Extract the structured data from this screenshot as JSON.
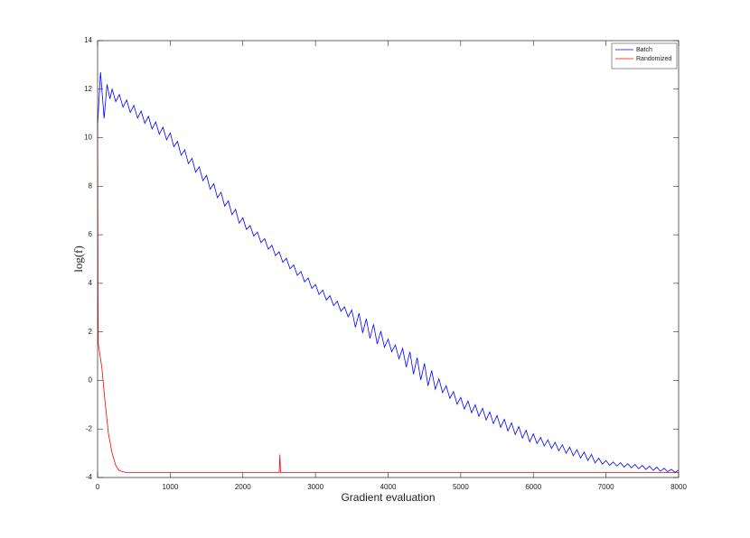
{
  "chart_data": {
    "type": "line",
    "xlabel": "Gradient evaluation",
    "ylabel": "log(f)",
    "xlim": [
      0,
      8000
    ],
    "ylim": [
      -4,
      14
    ],
    "xticks": [
      0,
      1000,
      2000,
      3000,
      4000,
      5000,
      6000,
      7000,
      8000
    ],
    "yticks": [
      -4,
      -2,
      0,
      2,
      4,
      6,
      8,
      10,
      12,
      14
    ],
    "legend": "upper right",
    "series": [
      {
        "name": "Batch",
        "color": "#0000ff",
        "x": [
          0,
          40,
          90,
          130,
          170,
          200,
          250,
          300,
          350,
          400,
          450,
          500,
          550,
          600,
          650,
          700,
          750,
          800,
          850,
          900,
          950,
          1000,
          1050,
          1100,
          1150,
          1200,
          1250,
          1300,
          1350,
          1400,
          1450,
          1500,
          1550,
          1600,
          1650,
          1700,
          1750,
          1800,
          1850,
          1900,
          1950,
          2000,
          2050,
          2100,
          2150,
          2200,
          2250,
          2300,
          2350,
          2400,
          2450,
          2500,
          2550,
          2600,
          2650,
          2700,
          2750,
          2800,
          2850,
          2900,
          2950,
          3000,
          3050,
          3100,
          3150,
          3200,
          3250,
          3300,
          3350,
          3400,
          3450,
          3500,
          3550,
          3600,
          3650,
          3700,
          3750,
          3800,
          3850,
          3900,
          3950,
          4000,
          4050,
          4100,
          4150,
          4200,
          4250,
          4300,
          4350,
          4400,
          4450,
          4500,
          4550,
          4600,
          4650,
          4700,
          4750,
          4800,
          4850,
          4900,
          4950,
          5000,
          5050,
          5100,
          5150,
          5200,
          5250,
          5300,
          5350,
          5400,
          5450,
          5500,
          5550,
          5600,
          5650,
          5700,
          5750,
          5800,
          5850,
          5900,
          5950,
          6000,
          6050,
          6100,
          6150,
          6200,
          6250,
          6300,
          6350,
          6400,
          6450,
          6500,
          6550,
          6600,
          6650,
          6700,
          6750,
          6800,
          6850,
          6900,
          6950,
          7000,
          7050,
          7100,
          7150,
          7200,
          7250,
          7300,
          7350,
          7400,
          7450,
          7500,
          7550,
          7600,
          7650,
          7700,
          7750,
          7800,
          7850,
          7900,
          7950,
          8000
        ],
        "values": [
          10.5,
          12.7,
          10.8,
          12.2,
          11.6,
          12.0,
          11.49,
          11.78,
          11.26,
          11.55,
          11.04,
          11.33,
          10.81,
          11.1,
          10.59,
          10.88,
          10.36,
          10.65,
          10.14,
          10.43,
          9.91,
          10.2,
          9.63,
          9.85,
          9.28,
          9.5,
          8.93,
          9.15,
          8.58,
          8.8,
          8.23,
          8.45,
          7.88,
          8.1,
          7.53,
          7.75,
          7.18,
          7.4,
          6.83,
          7.05,
          6.48,
          6.7,
          6.22,
          6.38,
          5.95,
          6.11,
          5.68,
          5.84,
          5.41,
          5.57,
          5.14,
          5.3,
          4.87,
          5.03,
          4.6,
          4.76,
          4.33,
          4.49,
          4.06,
          4.22,
          3.79,
          3.95,
          3.54,
          3.72,
          3.31,
          3.49,
          3.08,
          3.26,
          2.85,
          3.03,
          2.62,
          2.9,
          2.19,
          2.77,
          1.96,
          2.54,
          1.73,
          2.31,
          1.5,
          2.03,
          1.37,
          1.7,
          1.18,
          1.46,
          0.89,
          1.32,
          0.55,
          1.18,
          0.26,
          0.94,
          0.02,
          0.7,
          -0.22,
          0.41,
          -0.36,
          0.07,
          -0.5,
          -0.22,
          -0.74,
          -0.46,
          -0.98,
          -0.7,
          -1.18,
          -0.85,
          -1.33,
          -1.0,
          -1.48,
          -1.15,
          -1.63,
          -1.3,
          -1.78,
          -1.45,
          -1.93,
          -1.6,
          -2.08,
          -1.75,
          -2.23,
          -1.9,
          -2.38,
          -2.05,
          -2.53,
          -2.2,
          -2.6,
          -2.35,
          -2.7,
          -2.45,
          -2.8,
          -2.55,
          -2.9,
          -2.65,
          -3.0,
          -2.75,
          -3.1,
          -2.85,
          -3.2,
          -2.95,
          -3.3,
          -3.05,
          -3.4,
          -3.2,
          -3.45,
          -3.3,
          -3.5,
          -3.36,
          -3.53,
          -3.39,
          -3.57,
          -3.43,
          -3.6,
          -3.46,
          -3.64,
          -3.5,
          -3.67,
          -3.53,
          -3.71,
          -3.57,
          -3.74,
          -3.62,
          -3.76,
          -3.66,
          -3.79,
          -3.7
        ]
      },
      {
        "name": "Randomized",
        "color": "#ff0000",
        "x": [
          0,
          5,
          10,
          30,
          60,
          100,
          150,
          200,
          250,
          300,
          400,
          1000,
          2500,
          2510,
          2520,
          4000,
          8000
        ],
        "values": [
          10.9,
          4.0,
          1.5,
          1.1,
          0.5,
          -0.8,
          -2.2,
          -3.0,
          -3.5,
          -3.72,
          -3.8,
          -3.8,
          -3.8,
          -3.05,
          -3.8,
          -3.8,
          -3.8
        ]
      }
    ]
  }
}
